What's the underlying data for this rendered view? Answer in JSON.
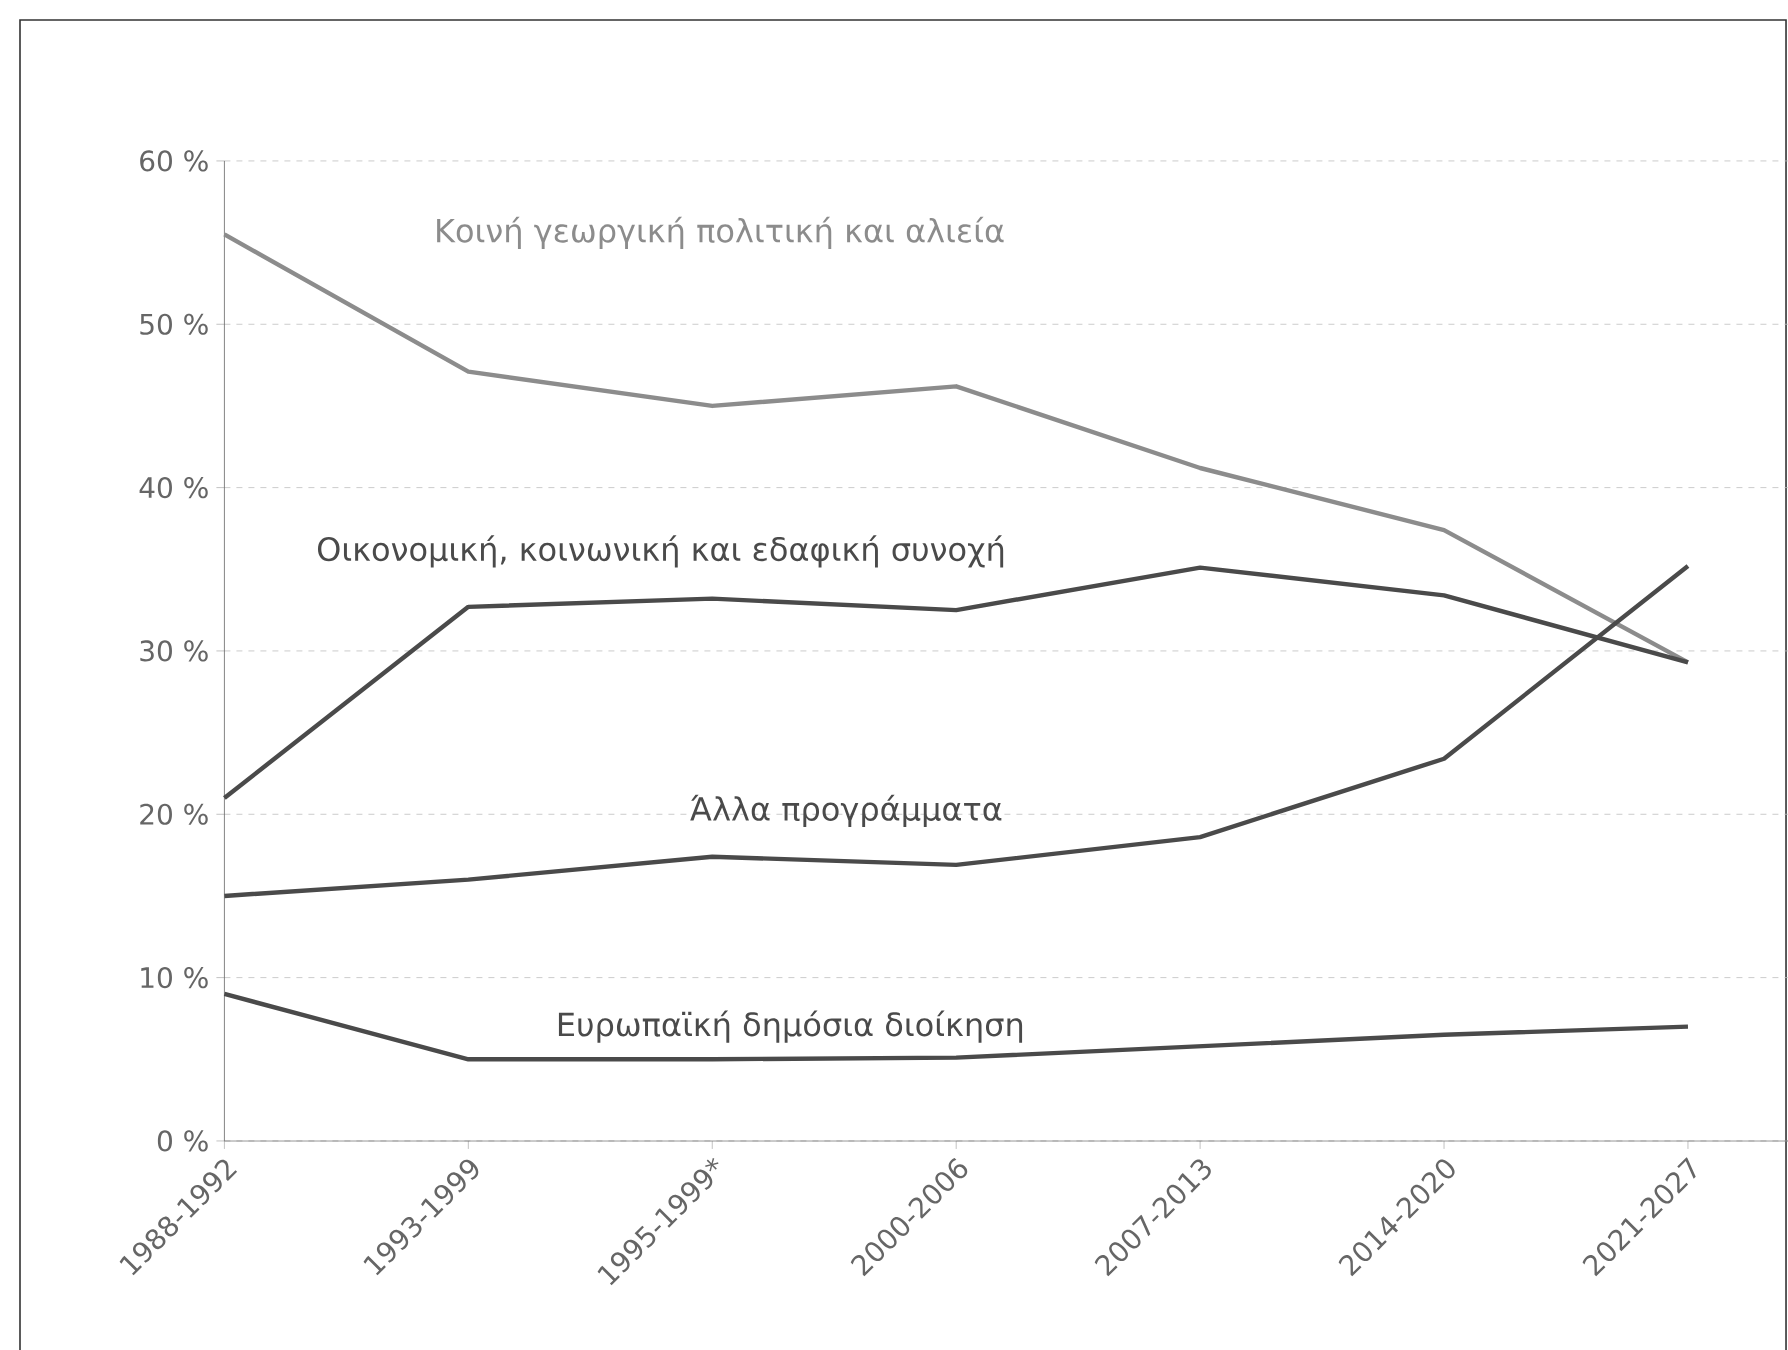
{
  "chart_data": {
    "type": "line",
    "categories": [
      "1988-1992",
      "1993-1999",
      "1995-1999*",
      "2000-2006",
      "2007-2013",
      "2014-2020",
      "2021-2027"
    ],
    "series": [
      {
        "name": "Κοινή γεωργική πολιτική και αλιεία",
        "color": "#8c8c8c",
        "values": [
          55.5,
          47.1,
          45.0,
          46.2,
          41.2,
          37.4,
          29.3
        ]
      },
      {
        "name": "Οικονομική, κοινωνική και εδαφική συνοχή",
        "color": "#4a4a4a",
        "values": [
          21.0,
          32.7,
          33.2,
          32.5,
          35.1,
          33.4,
          29.3
        ]
      },
      {
        "name": "Άλλα προγράμματα",
        "color": "#4a4a4a",
        "values": [
          15.0,
          16.0,
          17.4,
          16.9,
          18.6,
          23.4,
          35.2
        ]
      },
      {
        "name": "Ευρωπαϊκή δημόσια διοίκηση",
        "color": "#4a4a4a",
        "values": [
          9.0,
          5.0,
          5.0,
          5.1,
          5.8,
          6.5,
          7.0
        ]
      }
    ],
    "ylim": [
      0,
      60
    ],
    "yticks": [
      {
        "value": 0,
        "label": "0 %"
      },
      {
        "value": 10,
        "label": "10 %"
      },
      {
        "value": 20,
        "label": "20 %"
      },
      {
        "value": 30,
        "label": "30 %"
      },
      {
        "value": 40,
        "label": "40 %"
      },
      {
        "value": 50,
        "label": "50 %"
      },
      {
        "value": 60,
        "label": "60 %"
      }
    ],
    "grid": "y",
    "legend": false,
    "marker": "none",
    "line_style": "solid"
  }
}
